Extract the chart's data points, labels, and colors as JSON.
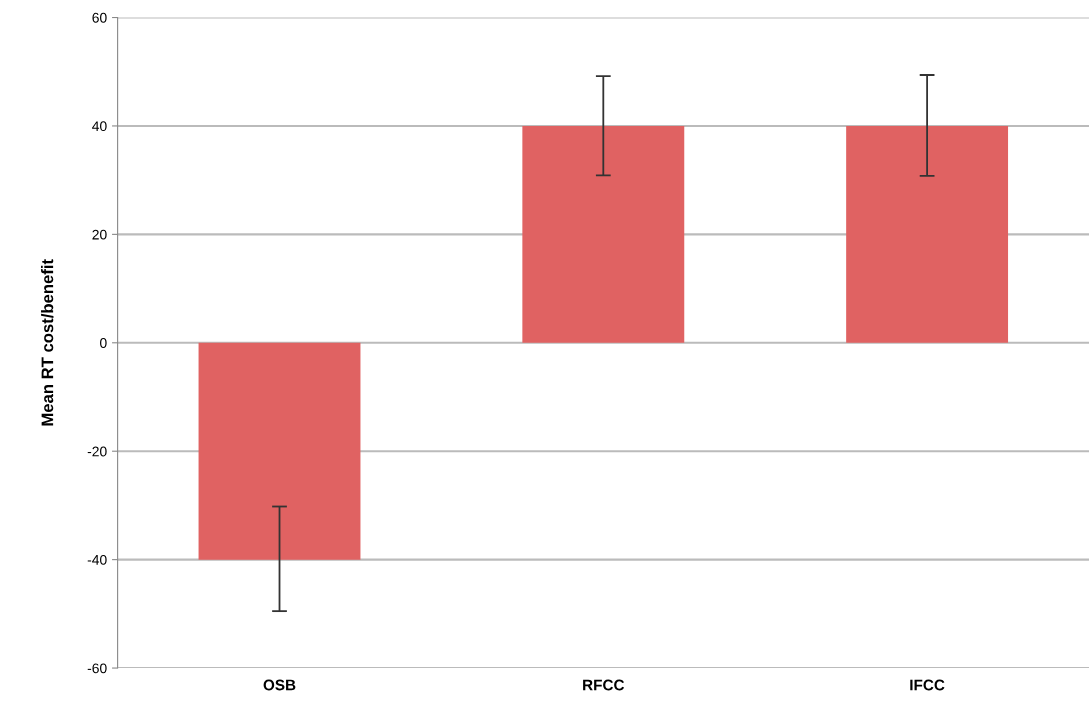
{
  "chart_data": {
    "type": "bar",
    "ylabel": "Mean RT cost/benefit",
    "categories": [
      "OSB",
      "RFCC",
      "IFCC"
    ],
    "values": [
      -40,
      40,
      40
    ],
    "color": "#e06262",
    "errors": [
      [
        -49.5,
        -30.2
      ],
      [
        30.9,
        49.2
      ],
      [
        30.8,
        49.4
      ]
    ],
    "ylim": [
      -60,
      60
    ],
    "yticks": [
      -60,
      -40,
      -20,
      0,
      20,
      40,
      60
    ],
    "grid": "y"
  }
}
